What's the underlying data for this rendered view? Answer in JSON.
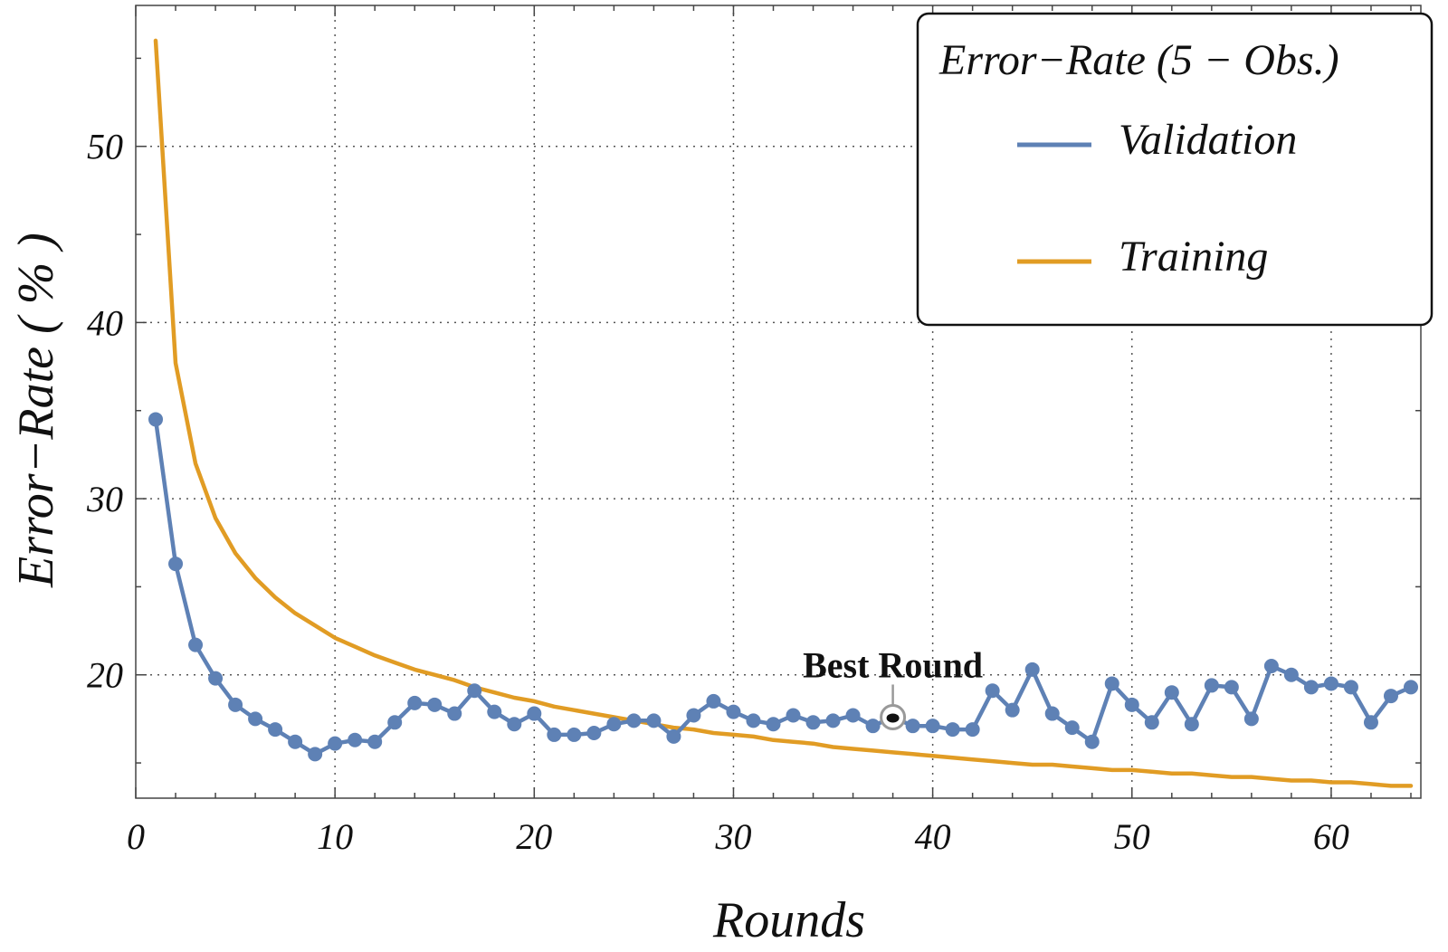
{
  "chart_data": {
    "type": "line",
    "xlabel": "Rounds",
    "ylabel": "Error−Rate ( % )",
    "xlim": [
      0,
      64.5
    ],
    "ylim": [
      13,
      58
    ],
    "x_ticks": [
      0,
      10,
      20,
      30,
      40,
      50,
      60
    ],
    "y_ticks": [
      20,
      30,
      40,
      50
    ],
    "grid": true,
    "legend": {
      "title": "Error−Rate (5 − Obs.)",
      "placement": "top-right"
    },
    "series": [
      {
        "name": "Validation",
        "color": "#5E81B5",
        "markers": true,
        "x": [
          1,
          2,
          3,
          4,
          5,
          6,
          7,
          8,
          9,
          10,
          11,
          12,
          13,
          14,
          15,
          16,
          17,
          18,
          19,
          20,
          21,
          22,
          23,
          24,
          25,
          26,
          27,
          28,
          29,
          30,
          31,
          32,
          33,
          34,
          35,
          36,
          37,
          38,
          39,
          40,
          41,
          42,
          43,
          44,
          45,
          46,
          47,
          48,
          49,
          50,
          51,
          52,
          53,
          54,
          55,
          56,
          57,
          58,
          59,
          60,
          61,
          62,
          63,
          64
        ],
        "values": [
          34.5,
          26.3,
          21.7,
          19.8,
          18.3,
          17.5,
          16.9,
          16.2,
          15.5,
          16.1,
          16.3,
          16.2,
          17.3,
          18.4,
          18.3,
          17.8,
          19.1,
          17.9,
          17.2,
          17.8,
          16.6,
          16.6,
          16.7,
          17.2,
          17.4,
          17.4,
          16.5,
          17.7,
          18.5,
          17.9,
          17.4,
          17.2,
          17.7,
          17.3,
          17.4,
          17.7,
          17.1,
          17.6,
          17.1,
          17.1,
          16.9,
          16.9,
          19.1,
          18.0,
          20.3,
          17.8,
          17.0,
          16.2,
          19.5,
          18.3,
          17.3,
          19.0,
          17.2,
          19.4,
          19.3,
          17.5,
          20.5,
          20.0,
          19.3,
          19.5,
          19.3,
          17.3,
          18.8,
          19.3
        ]
      },
      {
        "name": "Training",
        "color": "#E19C24",
        "markers": false,
        "x": [
          1,
          2,
          3,
          4,
          5,
          6,
          7,
          8,
          9,
          10,
          11,
          12,
          13,
          14,
          15,
          16,
          17,
          18,
          19,
          20,
          21,
          22,
          23,
          24,
          25,
          26,
          27,
          28,
          29,
          30,
          31,
          32,
          33,
          34,
          35,
          36,
          37,
          38,
          39,
          40,
          41,
          42,
          43,
          44,
          45,
          46,
          47,
          48,
          49,
          50,
          51,
          52,
          53,
          54,
          55,
          56,
          57,
          58,
          59,
          60,
          61,
          62,
          63,
          64
        ],
        "values": [
          56.0,
          37.7,
          32.0,
          28.9,
          26.9,
          25.5,
          24.4,
          23.5,
          22.8,
          22.1,
          21.6,
          21.1,
          20.7,
          20.3,
          20.0,
          19.7,
          19.3,
          19.0,
          18.7,
          18.5,
          18.2,
          18.0,
          17.8,
          17.6,
          17.4,
          17.2,
          17.0,
          16.9,
          16.7,
          16.6,
          16.5,
          16.3,
          16.2,
          16.1,
          15.9,
          15.8,
          15.7,
          15.6,
          15.5,
          15.4,
          15.3,
          15.2,
          15.1,
          15.0,
          14.9,
          14.9,
          14.8,
          14.7,
          14.6,
          14.6,
          14.5,
          14.4,
          14.4,
          14.3,
          14.2,
          14.2,
          14.1,
          14.0,
          14.0,
          13.9,
          13.9,
          13.8,
          13.7,
          13.7
        ]
      }
    ],
    "annotations": [
      {
        "text": "Best Round",
        "x": 38,
        "y": 17.6
      }
    ]
  }
}
